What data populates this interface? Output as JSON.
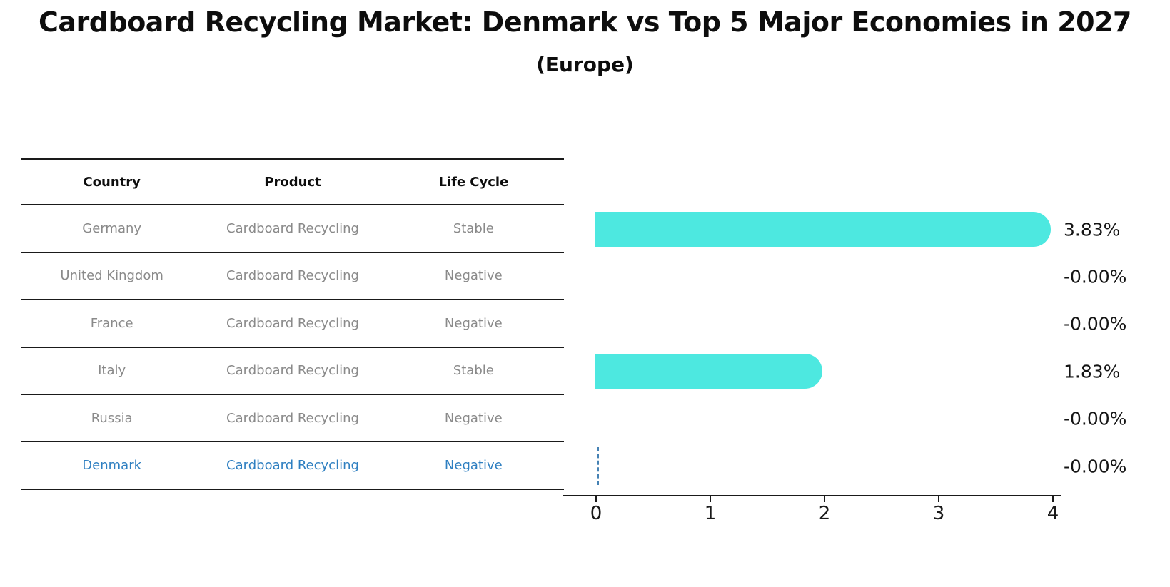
{
  "header": {
    "title": "Cardboard Recycling Market: Denmark vs Top 5 Major Economies in 2027",
    "subtitle": "(Europe)"
  },
  "table": {
    "headers": [
      "Country",
      "Product",
      "Life Cycle"
    ],
    "rows": [
      {
        "country": "Germany",
        "product": "Cardboard Recycling",
        "life_cycle": "Stable",
        "highlighted": false
      },
      {
        "country": "United Kingdom",
        "product": "Cardboard Recycling",
        "life_cycle": "Negative",
        "highlighted": false
      },
      {
        "country": "France",
        "product": "Cardboard Recycling",
        "life_cycle": "Negative",
        "highlighted": false
      },
      {
        "country": "Italy",
        "product": "Cardboard Recycling",
        "life_cycle": "Stable",
        "highlighted": false
      },
      {
        "country": "Russia",
        "product": "Cardboard Recycling",
        "life_cycle": "Negative",
        "highlighted": true
      }
    ],
    "last_row": {
      "country": "Denmark",
      "product": "Cardboard Recycling",
      "life_cycle": "Negative"
    }
  },
  "chart_data": {
    "type": "bar",
    "orientation": "horizontal",
    "title": "Cardboard Recycling Market: Denmark vs Top 5 Major Economies in 2027",
    "subtitle": "(Europe)",
    "categories": [
      "Germany",
      "United Kingdom",
      "France",
      "Italy",
      "Russia",
      "Denmark"
    ],
    "values": [
      3.83,
      -0.0,
      -0.0,
      1.83,
      -0.0,
      -0.0
    ],
    "value_labels": [
      "3.83%",
      "-0.00%",
      "-0.00%",
      "1.83%",
      "-0.00%",
      "-0.00%"
    ],
    "xlabel": "",
    "ylabel": "",
    "xlim": [
      0,
      4
    ],
    "xticks": [
      "0",
      "1",
      "2",
      "3",
      "4"
    ],
    "grid": false,
    "legend": false,
    "bar_color": "#4de8e0",
    "highlight": {
      "category": "Denmark",
      "marker": "dashed-zero-line",
      "color": "#4682b4"
    }
  },
  "colors": {
    "bar_turquoise": "#4de8e0",
    "highlight_blue": "#2e7fc1",
    "dashed_marker_blue": "#4682b4",
    "table_text_gray": "#8a8a8a",
    "axis_black": "#1a1a1a"
  }
}
